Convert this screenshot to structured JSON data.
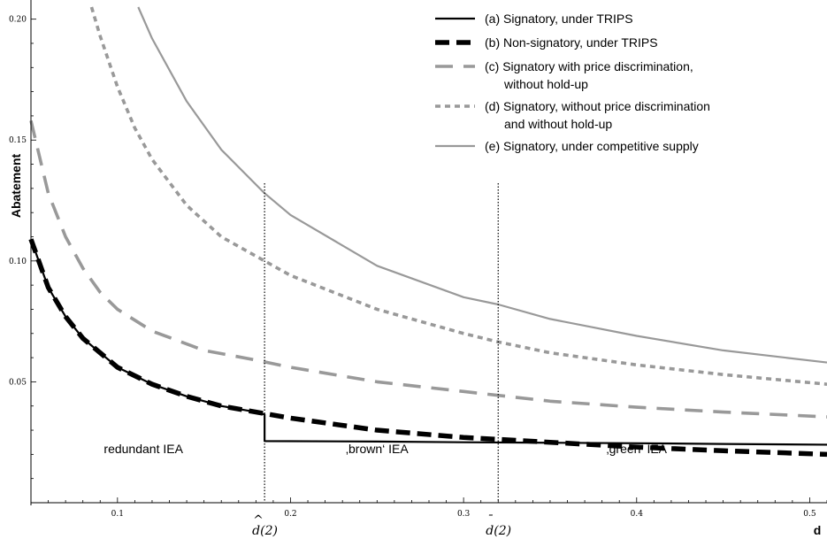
{
  "chart_data": {
    "type": "line",
    "xlabel": "d",
    "ylabel": "Abatement",
    "xlim": [
      0.05,
      0.51
    ],
    "ylim": [
      0.0,
      0.205
    ],
    "x_ticks": [
      {
        "value": 0.1,
        "label": "0.1"
      },
      {
        "value": 0.2,
        "label": "0.2"
      },
      {
        "value": 0.3,
        "label": "0.3"
      },
      {
        "value": 0.4,
        "label": "0.4"
      },
      {
        "value": 0.5,
        "label": "0.5"
      }
    ],
    "y_ticks": [
      {
        "value": 0.05,
        "label": "0.05"
      },
      {
        "value": 0.1,
        "label": "0.10"
      },
      {
        "value": 0.15,
        "label": "0.15"
      },
      {
        "value": 0.2,
        "label": "0.20"
      }
    ],
    "legend_position": "top-right",
    "series": [
      {
        "key": "a",
        "name": "(a) Signatory, under TRIPS",
        "color": "#000000",
        "style": "solid",
        "x": [
          0.05,
          0.06,
          0.07,
          0.08,
          0.09,
          0.1,
          0.12,
          0.14,
          0.16,
          0.18,
          0.185,
          0.185,
          0.25,
          0.3,
          0.35,
          0.4,
          0.45,
          0.51
        ],
        "y": [
          0.109,
          0.089,
          0.077,
          0.068,
          0.062,
          0.056,
          0.049,
          0.044,
          0.04,
          0.0375,
          0.0365,
          0.0255,
          0.0253,
          0.025,
          0.0248,
          0.0246,
          0.0243,
          0.024
        ]
      },
      {
        "key": "b",
        "name": "(b) Non-signatory, under TRIPS",
        "color": "#000000",
        "style": "thick-dash",
        "x": [
          0.05,
          0.06,
          0.07,
          0.08,
          0.09,
          0.1,
          0.12,
          0.14,
          0.16,
          0.18,
          0.2,
          0.25,
          0.3,
          0.35,
          0.4,
          0.45,
          0.51
        ],
        "y": [
          0.109,
          0.089,
          0.077,
          0.068,
          0.062,
          0.056,
          0.049,
          0.044,
          0.04,
          0.0375,
          0.035,
          0.03,
          0.027,
          0.025,
          0.023,
          0.0215,
          0.02
        ]
      },
      {
        "key": "c",
        "name": "(c) Signatory with price discrimination, without hold-up",
        "color": "#999999",
        "style": "long-dash",
        "x": [
          0.05,
          0.06,
          0.07,
          0.08,
          0.09,
          0.1,
          0.12,
          0.15,
          0.18,
          0.2,
          0.25,
          0.3,
          0.35,
          0.4,
          0.45,
          0.51
        ],
        "y": [
          0.158,
          0.128,
          0.11,
          0.097,
          0.087,
          0.08,
          0.071,
          0.063,
          0.059,
          0.056,
          0.05,
          0.046,
          0.042,
          0.0395,
          0.0375,
          0.0355
        ]
      },
      {
        "key": "d",
        "name": "(d) Signatory, without price discrimination and without hold-up",
        "color": "#999999",
        "style": "short-dash",
        "x": [
          0.085,
          0.09,
          0.1,
          0.11,
          0.12,
          0.14,
          0.16,
          0.185,
          0.2,
          0.25,
          0.3,
          0.32,
          0.35,
          0.4,
          0.45,
          0.51
        ],
        "y": [
          0.205,
          0.193,
          0.172,
          0.155,
          0.142,
          0.123,
          0.11,
          0.1,
          0.094,
          0.08,
          0.07,
          0.0665,
          0.062,
          0.057,
          0.053,
          0.049
        ]
      },
      {
        "key": "e",
        "name": "(e) Signatory, under competitive supply",
        "color": "#999999",
        "style": "solid",
        "x": [
          0.112,
          0.12,
          0.14,
          0.16,
          0.185,
          0.2,
          0.25,
          0.3,
          0.32,
          0.35,
          0.4,
          0.45,
          0.51
        ],
        "y": [
          0.205,
          0.192,
          0.166,
          0.146,
          0.128,
          0.119,
          0.098,
          0.085,
          0.082,
          0.076,
          0.069,
          0.063,
          0.058
        ]
      }
    ],
    "legend": [
      {
        "series": "a",
        "lines": [
          "(a) Signatory, under TRIPS"
        ]
      },
      {
        "series": "b",
        "lines": [
          "(b) Non-signatory, under TRIPS"
        ]
      },
      {
        "series": "c",
        "lines": [
          "(c) Signatory with price discrimination,",
          "without hold-up"
        ]
      },
      {
        "series": "d",
        "lines": [
          "(d) Signatory, without price discrimination",
          "and without hold-up"
        ]
      },
      {
        "series": "e",
        "lines": [
          "(e) Signatory, under competitive supply"
        ]
      }
    ],
    "vertical_markers": [
      {
        "x": 0.185,
        "label_base": "d",
        "label_accent": "^",
        "label_suffix": "(2)"
      },
      {
        "x": 0.32,
        "label_base": "d",
        "label_accent": "¯",
        "label_suffix": "(2)"
      }
    ],
    "regions": [
      {
        "label": "redundant IEA",
        "x": 0.115
      },
      {
        "label": "‚brown‘ IEA",
        "x": 0.25
      },
      {
        "label": "‚green‘ IEA",
        "x": 0.4
      }
    ]
  }
}
